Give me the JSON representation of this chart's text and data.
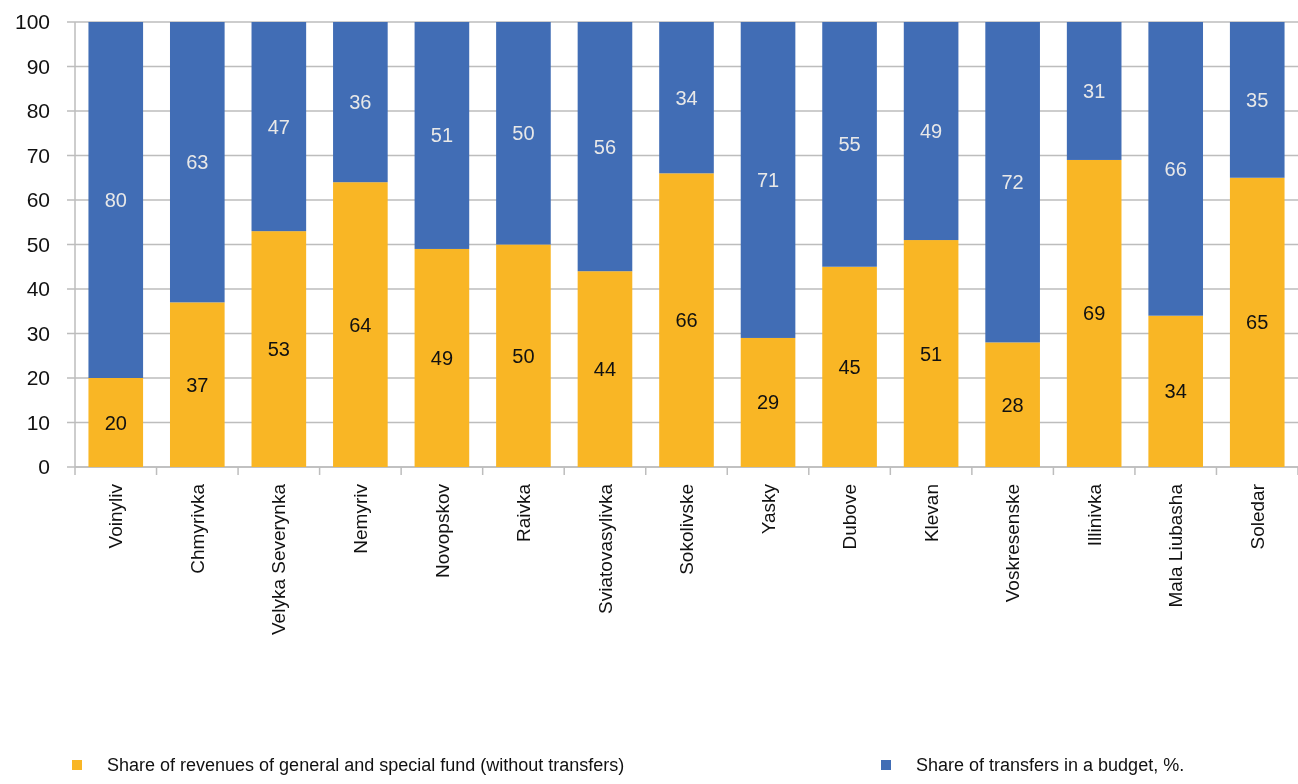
{
  "chart_data": {
    "type": "bar",
    "stacked": true,
    "categories": [
      "Voinyliv",
      "Chmyrivka",
      "Velyka Severynka",
      "Nemyriv",
      "Novopskov",
      "Raivka",
      "Sviatovasylivka",
      "Sokolivske",
      "Yasky",
      "Dubove",
      "Klevan",
      "Voskresenske",
      "Illinivka",
      "Mala Liubasha",
      "Soledar"
    ],
    "series": [
      {
        "name": "Share of revenues of general and special fund (without transfers)",
        "color": "#f9b625",
        "values": [
          20,
          37,
          53,
          64,
          49,
          50,
          44,
          66,
          29,
          45,
          51,
          28,
          69,
          34,
          65
        ]
      },
      {
        "name": "Share of transfers in a budget, %.",
        "color": "#416db5",
        "values": [
          80,
          63,
          47,
          36,
          51,
          50,
          56,
          34,
          71,
          55,
          49,
          72,
          31,
          66,
          35
        ]
      }
    ],
    "ylim": [
      0,
      100
    ],
    "yticks": [
      0,
      10,
      20,
      30,
      40,
      50,
      60,
      70,
      80,
      90,
      100
    ],
    "grid": "y",
    "legend": "bottom",
    "data_labels": true
  }
}
